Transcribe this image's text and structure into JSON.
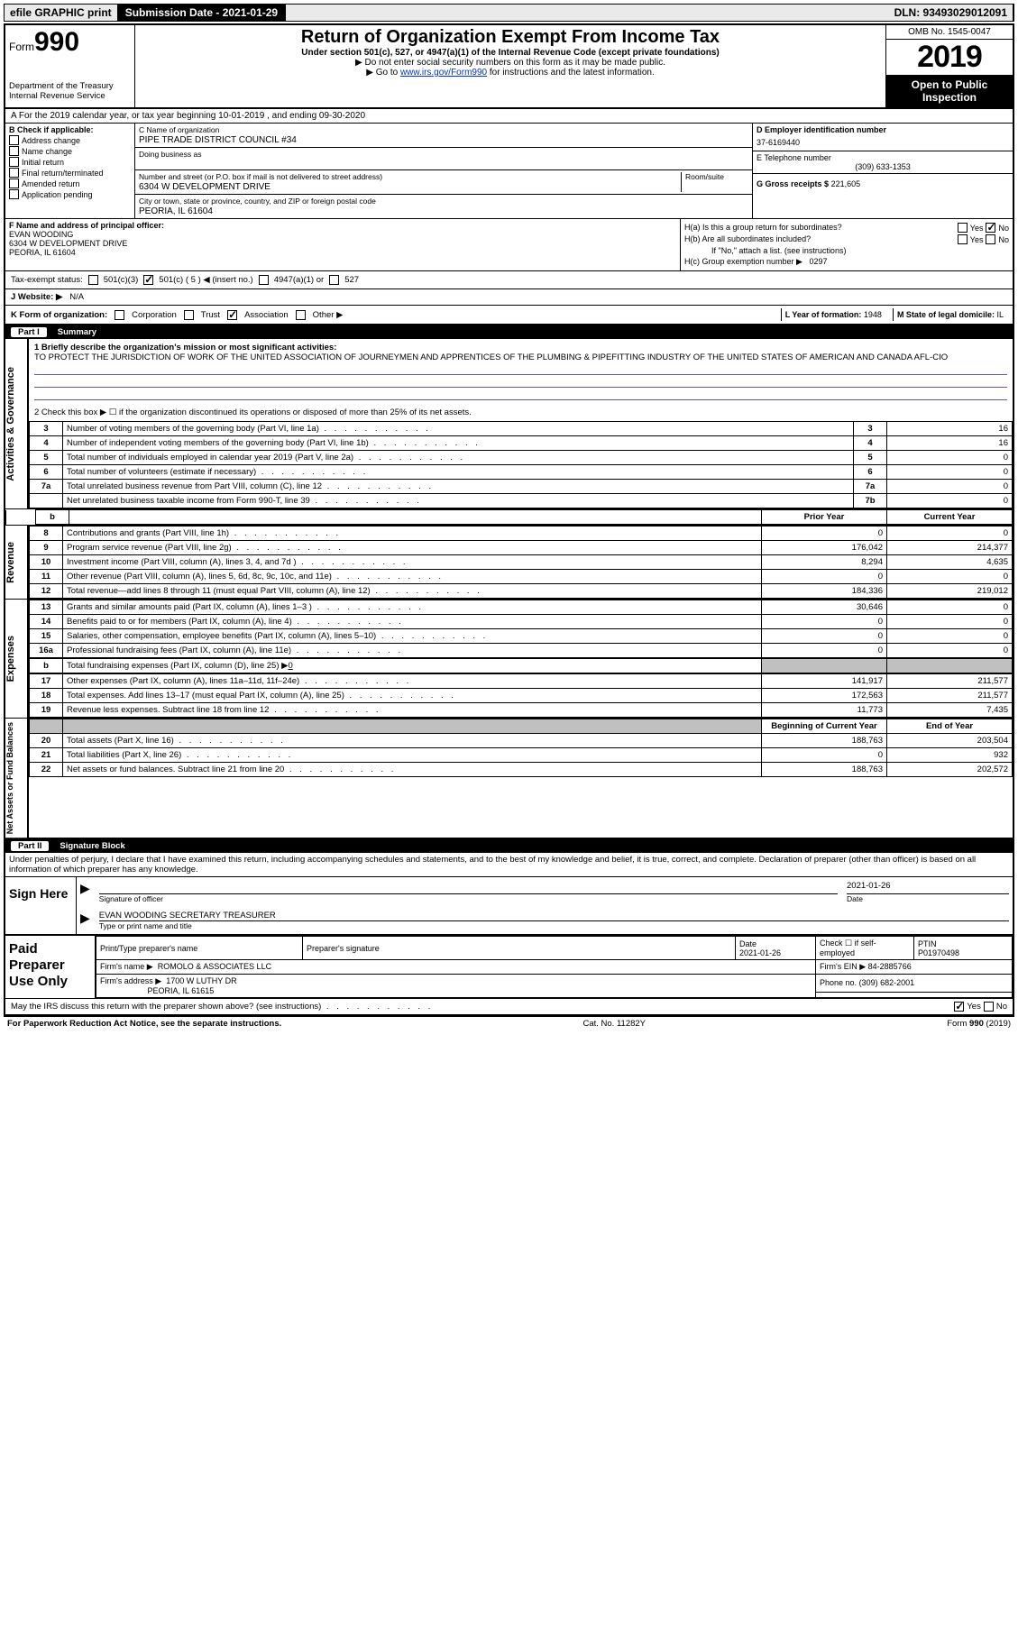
{
  "header_bar": {
    "efile": "efile GRAPHIC print",
    "submission_label": "Submission Date - 2021-01-29",
    "dln": "DLN: 93493029012091"
  },
  "form_title": {
    "form_label": "Form",
    "form_num": "990",
    "dept": "Department of the Treasury\nInternal Revenue Service",
    "title": "Return of Organization Exempt From Income Tax",
    "subtitle": "Under section 501(c), 527, or 4947(a)(1) of the Internal Revenue Code (except private foundations)",
    "note1": "▶ Do not enter social security numbers on this form as it may be made public.",
    "note2_pre": "▶ Go to ",
    "note2_link": "www.irs.gov/Form990",
    "note2_post": " for instructions and the latest information.",
    "omb": "OMB No. 1545-0047",
    "year": "2019",
    "public": "Open to Public Inspection"
  },
  "calendar": "A For the 2019 calendar year, or tax year beginning 10-01-2019    , and ending 09-30-2020",
  "section_b": {
    "label": "B Check if applicable:",
    "items": [
      "Address change",
      "Name change",
      "Initial return",
      "Final return/terminated",
      "Amended return",
      "Application pending"
    ]
  },
  "section_c": {
    "name_label": "C Name of organization",
    "name": "PIPE TRADE DISTRICT COUNCIL #34",
    "dba_label": "Doing business as",
    "addr_label": "Number and street (or P.O. box if mail is not delivered to street address)",
    "room_label": "Room/suite",
    "addr": "6304 W DEVELOPMENT DRIVE",
    "city_label": "City or town, state or province, country, and ZIP or foreign postal code",
    "city": "PEORIA, IL  61604"
  },
  "section_d": {
    "ein_label": "D Employer identification number",
    "ein": "37-6169440",
    "tel_label": "E Telephone number",
    "tel": "(309) 633-1353",
    "gross_label": "G Gross receipts $",
    "gross": "221,605"
  },
  "section_f": {
    "label": "F  Name and address of principal officer:",
    "name": "EVAN WOODING",
    "addr1": "6304 W DEVELOPMENT DRIVE",
    "addr2": "PEORIA, IL  61604"
  },
  "section_h": {
    "ha": "H(a)  Is this a group return for subordinates?",
    "hb": "H(b)  Are all subordinates included?",
    "note": "If \"No,\" attach a list. (see instructions)",
    "hc": "H(c)  Group exemption number ▶",
    "hc_val": "0297"
  },
  "tax_exempt": {
    "label": "Tax-exempt status:",
    "c3": "501(c)(3)",
    "c": "501(c) ( 5 ) ◀ (insert no.)",
    "a1": "4947(a)(1) or",
    "527": "527"
  },
  "row_j": {
    "label": "J   Website: ▶",
    "val": "N/A"
  },
  "row_k": {
    "label": "K Form of organization:",
    "corp": "Corporation",
    "trust": "Trust",
    "assoc": "Association",
    "other": "Other ▶",
    "l_label": "L Year of formation:",
    "l_val": "1948",
    "m_label": "M State of legal domicile:",
    "m_val": "IL"
  },
  "part1": {
    "num": "Part I",
    "title": "Summary"
  },
  "governance": {
    "q1_label": "1  Briefly describe the organization's mission or most significant activities:",
    "q1_text": "TO PROTECT THE JURISDICTION OF WORK OF THE UNITED ASSOCIATION OF JOURNEYMEN AND APPRENTICES OF THE PLUMBING & PIPEFITTING INDUSTRY OF THE UNITED STATES OF AMERICAN AND CANADA AFL-CIO",
    "q2": "2   Check this box ▶ ☐  if the organization discontinued its operations or disposed of more than 25% of its net assets.",
    "rows": [
      {
        "n": "3",
        "t": "Number of voting members of the governing body (Part VI, line 1a)",
        "rn": "3",
        "v": "16"
      },
      {
        "n": "4",
        "t": "Number of independent voting members of the governing body (Part VI, line 1b)",
        "rn": "4",
        "v": "16"
      },
      {
        "n": "5",
        "t": "Total number of individuals employed in calendar year 2019 (Part V, line 2a)",
        "rn": "5",
        "v": "0"
      },
      {
        "n": "6",
        "t": "Total number of volunteers (estimate if necessary)",
        "rn": "6",
        "v": "0"
      },
      {
        "n": "7a",
        "t": "Total unrelated business revenue from Part VIII, column (C), line 12",
        "rn": "7a",
        "v": "0"
      },
      {
        "n": "",
        "t": "Net unrelated business taxable income from Form 990-T, line 39",
        "rn": "7b",
        "v": "0"
      }
    ]
  },
  "columns": {
    "prior": "Prior Year",
    "current": "Current Year",
    "beg": "Beginning of Current Year",
    "end": "End of Year"
  },
  "revenue": [
    {
      "n": "8",
      "t": "Contributions and grants (Part VIII, line 1h)",
      "p": "0",
      "c": "0"
    },
    {
      "n": "9",
      "t": "Program service revenue (Part VIII, line 2g)",
      "p": "176,042",
      "c": "214,377"
    },
    {
      "n": "10",
      "t": "Investment income (Part VIII, column (A), lines 3, 4, and 7d )",
      "p": "8,294",
      "c": "4,635"
    },
    {
      "n": "11",
      "t": "Other revenue (Part VIII, column (A), lines 5, 6d, 8c, 9c, 10c, and 11e)",
      "p": "0",
      "c": "0"
    },
    {
      "n": "12",
      "t": "Total revenue—add lines 8 through 11 (must equal Part VIII, column (A), line 12)",
      "p": "184,336",
      "c": "219,012"
    }
  ],
  "expenses": [
    {
      "n": "13",
      "t": "Grants and similar amounts paid (Part IX, column (A), lines 1–3 )",
      "p": "30,646",
      "c": "0"
    },
    {
      "n": "14",
      "t": "Benefits paid to or for members (Part IX, column (A), line 4)",
      "p": "0",
      "c": "0"
    },
    {
      "n": "15",
      "t": "Salaries, other compensation, employee benefits (Part IX, column (A), lines 5–10)",
      "p": "0",
      "c": "0"
    },
    {
      "n": "16a",
      "t": "Professional fundraising fees (Part IX, column (A), line 11e)",
      "p": "0",
      "c": "0"
    }
  ],
  "expenses_b": {
    "n": "b",
    "t": "Total fundraising expenses (Part IX, column (D), line 25) ▶",
    "v": "0"
  },
  "expenses2": [
    {
      "n": "17",
      "t": "Other expenses (Part IX, column (A), lines 11a–11d, 11f–24e)",
      "p": "141,917",
      "c": "211,577"
    },
    {
      "n": "18",
      "t": "Total expenses. Add lines 13–17 (must equal Part IX, column (A), line 25)",
      "p": "172,563",
      "c": "211,577"
    },
    {
      "n": "19",
      "t": "Revenue less expenses. Subtract line 18 from line 12",
      "p": "11,773",
      "c": "7,435"
    }
  ],
  "netassets": [
    {
      "n": "20",
      "t": "Total assets (Part X, line 16)",
      "p": "188,763",
      "c": "203,504"
    },
    {
      "n": "21",
      "t": "Total liabilities (Part X, line 26)",
      "p": "0",
      "c": "932"
    },
    {
      "n": "22",
      "t": "Net assets or fund balances. Subtract line 21 from line 20",
      "p": "188,763",
      "c": "202,572"
    }
  ],
  "sides": {
    "gov": "Activities & Governance",
    "rev": "Revenue",
    "exp": "Expenses",
    "net": "Net Assets or Fund Balances"
  },
  "part2": {
    "num": "Part II",
    "title": "Signature Block",
    "decl": "Under penalties of perjury, I declare that I have examined this return, including accompanying schedules and statements, and to the best of my knowledge and belief, it is true, correct, and complete. Declaration of preparer (other than officer) is based on all information of which preparer has any knowledge."
  },
  "sign": {
    "here": "Sign Here",
    "sig_label": "Signature of officer",
    "date_label": "Date",
    "date": "2021-01-26",
    "name": "EVAN WOODING SECRETARY TREASURER",
    "name_label": "Type or print name and title"
  },
  "paid": {
    "title": "Paid Preparer Use Only",
    "prep_name_label": "Print/Type preparer's name",
    "prep_sig_label": "Preparer's signature",
    "date_label": "Date",
    "date": "2021-01-26",
    "check_label": "Check ☐ if self-employed",
    "ptin_label": "PTIN",
    "ptin": "P01970498",
    "firm_name_label": "Firm's name    ▶",
    "firm_name": "ROMOLO & ASSOCIATES LLC",
    "firm_ein_label": "Firm's EIN ▶",
    "firm_ein": "84-2885766",
    "firm_addr_label": "Firm's address ▶",
    "firm_addr": "1700 W LUTHY DR",
    "firm_city": "PEORIA, IL  61615",
    "phone_label": "Phone no.",
    "phone": "(309) 682-2001"
  },
  "irs_discuss": "May the IRS discuss this return with the preparer shown above? (see instructions)",
  "footer": {
    "left": "For Paperwork Reduction Act Notice, see the separate instructions.",
    "mid": "Cat. No. 11282Y",
    "right": "Form 990 (2019)"
  }
}
